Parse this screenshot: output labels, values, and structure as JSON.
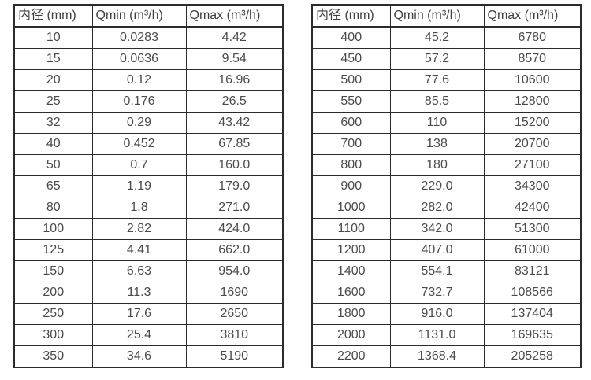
{
  "style": {
    "border_color": "#2b2b2b",
    "header_text_color": "#3f3f3f",
    "cell_text_color": "#4a4a4a",
    "background_color": "#ffffff"
  },
  "tables": [
    {
      "name": "small-diameter-flow-table",
      "headers": [
        "内径 (mm)",
        "Qmin (m³/h)",
        "Qmax (m³/h)"
      ],
      "rows": [
        [
          "10",
          "0.0283",
          "4.42"
        ],
        [
          "15",
          "0.0636",
          "9.54"
        ],
        [
          "20",
          "0.12",
          "16.96"
        ],
        [
          "25",
          "0.176",
          "26.5"
        ],
        [
          "32",
          "0.29",
          "43.42"
        ],
        [
          "40",
          "0.452",
          "67.85"
        ],
        [
          "50",
          "0.7",
          "160.0"
        ],
        [
          "65",
          "1.19",
          "179.0"
        ],
        [
          "80",
          "1.8",
          "271.0"
        ],
        [
          "100",
          "2.82",
          "424.0"
        ],
        [
          "125",
          "4.41",
          "662.0"
        ],
        [
          "150",
          "6.63",
          "954.0"
        ],
        [
          "200",
          "11.3",
          "1690"
        ],
        [
          "250",
          "17.6",
          "2650"
        ],
        [
          "300",
          "25.4",
          "3810"
        ],
        [
          "350",
          "34.6",
          "5190"
        ]
      ]
    },
    {
      "name": "large-diameter-flow-table",
      "headers": [
        "内径 (mm)",
        "Qmin (m³/h)",
        "Qmax (m³/h)"
      ],
      "rows": [
        [
          "400",
          "45.2",
          "6780"
        ],
        [
          "450",
          "57.2",
          "8570"
        ],
        [
          "500",
          "77.6",
          "10600"
        ],
        [
          "550",
          "85.5",
          "12800"
        ],
        [
          "600",
          "110",
          "15200"
        ],
        [
          "700",
          "138",
          "20700"
        ],
        [
          "800",
          "180",
          "27100"
        ],
        [
          "900",
          "229.0",
          "34300"
        ],
        [
          "1000",
          "282.0",
          "42400"
        ],
        [
          "1100",
          "342.0",
          "51300"
        ],
        [
          "1200",
          "407.0",
          "61000"
        ],
        [
          "1400",
          "554.1",
          "83121"
        ],
        [
          "1600",
          "732.7",
          "108566"
        ],
        [
          "1800",
          "916.0",
          "137404"
        ],
        [
          "2000",
          "1131.0",
          "169635"
        ],
        [
          "2200",
          "1368.4",
          "205258"
        ]
      ]
    }
  ]
}
